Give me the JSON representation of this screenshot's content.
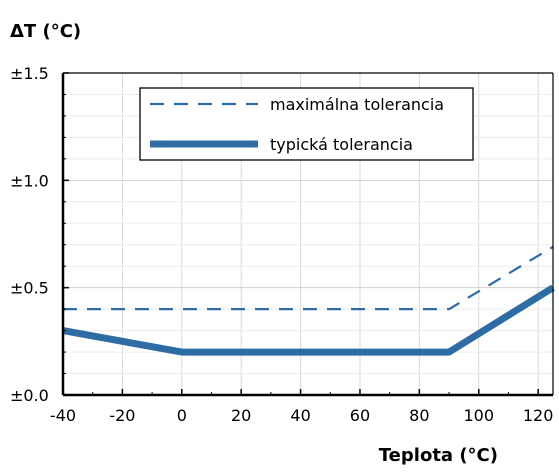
{
  "chart_data": {
    "type": "line",
    "ylabel": "ΔT (°C)",
    "xlabel": "Teplota (°C)",
    "xlim": [
      -40,
      125
    ],
    "ylim": [
      0,
      1.5
    ],
    "grid": true,
    "legend_position": "top-right",
    "x_ticks": [
      -40,
      -20,
      0,
      20,
      40,
      60,
      80,
      100,
      120
    ],
    "x_tick_labels": [
      "-40",
      "-20",
      "0",
      "20",
      "40",
      "60",
      "80",
      "100",
      "120"
    ],
    "y_ticks": [
      0,
      0.5,
      1.0,
      1.5
    ],
    "y_tick_labels": [
      "±0.0",
      "±0.5",
      "±1.0",
      "±1.5"
    ],
    "series": [
      {
        "name": "maximálna tolerancia",
        "style": "dashed",
        "color": "#2e6da4",
        "x": [
          -40,
          90,
          125
        ],
        "y": [
          0.4,
          0.4,
          0.69
        ]
      },
      {
        "name": "typická tolerancia",
        "style": "solid-thick",
        "color": "#2e6da4",
        "x": [
          -40,
          0,
          90,
          125
        ],
        "y": [
          0.3,
          0.2,
          0.2,
          0.5
        ]
      }
    ]
  }
}
